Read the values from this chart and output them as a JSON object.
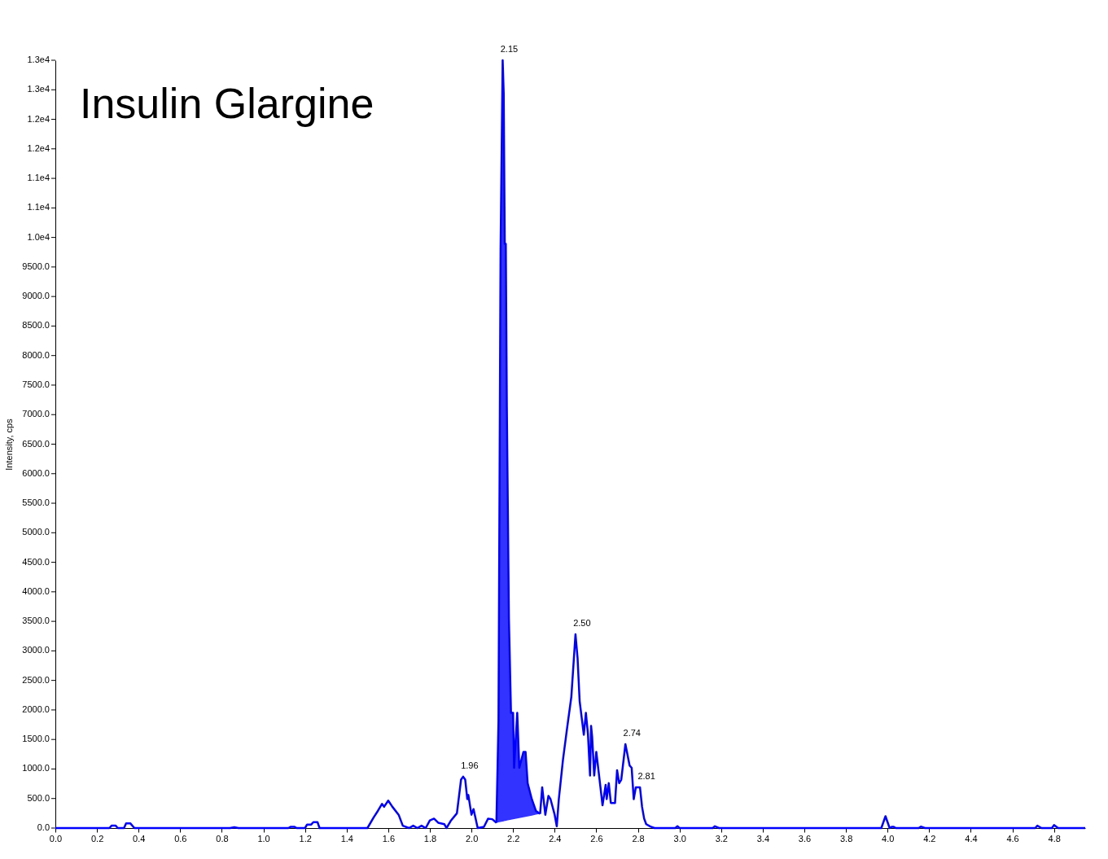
{
  "chart_data": {
    "type": "line",
    "title": "Insulin Glargine",
    "ylabel": "Intensity, cps",
    "xlim": [
      0,
      4.95
    ],
    "ylim": [
      0,
      13000
    ],
    "xticks": [
      {
        "value": 0,
        "label": "0.0"
      },
      0.2,
      0.4,
      0.6,
      0.8,
      {
        "value": 1,
        "label": "1.0"
      },
      1.2,
      1.4,
      1.6,
      1.8,
      {
        "value": 2,
        "label": "2.0"
      },
      2.2,
      2.4,
      2.6,
      2.8,
      {
        "value": 3,
        "label": "3.0"
      },
      3.2,
      3.4,
      3.6,
      3.8,
      {
        "value": 4,
        "label": "4.0"
      },
      4.2,
      4.4,
      4.6,
      4.8
    ],
    "yticks": [
      {
        "value": 0,
        "label": "0.0"
      },
      {
        "value": 500,
        "label": "500.0"
      },
      {
        "value": 1000,
        "label": "1000.0"
      },
      {
        "value": 1500,
        "label": "1500.0"
      },
      {
        "value": 2000,
        "label": "2000.0"
      },
      {
        "value": 2500,
        "label": "2500.0"
      },
      {
        "value": 3000,
        "label": "3000.0"
      },
      {
        "value": 3500,
        "label": "3500.0"
      },
      {
        "value": 4000,
        "label": "4000.0"
      },
      {
        "value": 4500,
        "label": "4500.0"
      },
      {
        "value": 5000,
        "label": "5000.0"
      },
      {
        "value": 5500,
        "label": "5500.0"
      },
      {
        "value": 6000,
        "label": "6000.0"
      },
      {
        "value": 6500,
        "label": "6500.0"
      },
      {
        "value": 7000,
        "label": "7000.0"
      },
      {
        "value": 7500,
        "label": "7500.0"
      },
      {
        "value": 8000,
        "label": "8000.0"
      },
      {
        "value": 8500,
        "label": "8500.0"
      },
      {
        "value": 9000,
        "label": "9000.0"
      },
      {
        "value": 9500,
        "label": "9500.0"
      },
      {
        "value": 10000,
        "label": "1.0e4"
      },
      {
        "value": 10500,
        "label": "1.1e4"
      },
      {
        "value": 11000,
        "label": "1.1e4"
      },
      {
        "value": 11500,
        "label": "1.2e4"
      },
      {
        "value": 12000,
        "label": "1.2e4"
      },
      {
        "value": 12500,
        "label": "1.3e4"
      },
      {
        "value": 13000,
        "label": "1.3e4"
      }
    ],
    "grid": false,
    "marker": "none",
    "line_style": "solid",
    "series": [
      {
        "color": "#0000ff",
        "x": [
          0,
          0.26,
          0.27,
          0.29,
          0.3,
          0.33,
          0.34,
          0.36,
          0.38,
          0.84,
          0.86,
          0.88,
          1.12,
          1.13,
          1.15,
          1.16,
          1.2,
          1.21,
          1.23,
          1.24,
          1.26,
          1.27,
          1.5,
          1.53,
          1.55,
          1.57,
          1.58,
          1.6,
          1.62,
          1.65,
          1.67,
          1.7,
          1.72,
          1.74,
          1.76,
          1.78,
          1.8,
          1.82,
          1.84,
          1.87,
          1.88,
          1.9,
          1.93,
          1.95,
          1.96,
          1.97,
          1.98,
          1.985,
          2.0,
          2.01,
          2.03,
          2.06,
          2.08,
          2.1,
          2.12
        ],
        "values": [
          0,
          0,
          40,
          40,
          0,
          0,
          80,
          80,
          0,
          0,
          15,
          0,
          0,
          20,
          20,
          0,
          0,
          60,
          60,
          100,
          100,
          0,
          0,
          180,
          290,
          410,
          360,
          465,
          360,
          225,
          40,
          0,
          40,
          0,
          40,
          0,
          130,
          160,
          90,
          65,
          0,
          120,
          250,
          820,
          870,
          820,
          490,
          560,
          225,
          320,
          0,
          20,
          160,
          150,
          90
        ]
      },
      {
        "color": "#0000ff",
        "type": "line",
        "x": [
          2.12,
          2.13,
          2.14,
          2.15,
          2.155,
          2.16,
          2.165,
          2.17,
          2.18,
          2.19,
          2.2,
          2.205,
          2.22,
          2.23,
          2.25,
          2.26,
          2.27,
          2.29,
          2.31,
          2.33
        ],
        "values": [
          90,
          1800,
          9800,
          13000,
          12440,
          9890,
          9890,
          7130,
          3550,
          1950,
          1950,
          1020,
          1950,
          1020,
          1290,
          1290,
          760,
          490,
          290,
          240
        ],
        "lower": [
          90,
          97,
          104,
          111,
          115,
          119,
          122,
          126,
          133,
          140,
          147,
          151,
          161,
          169,
          183,
          190,
          197,
          211,
          226,
          240
        ],
        "upper": [
          90,
          1800,
          9800,
          13000,
          12440,
          9890,
          9890,
          7130,
          3550,
          1950,
          1950,
          1020,
          1950,
          1020,
          1290,
          1290,
          760,
          490,
          290,
          240
        ]
      },
      {
        "color": "#0000ff",
        "x": [
          2.33,
          2.34,
          2.355,
          2.37,
          2.38,
          2.4,
          2.41,
          2.42,
          2.44,
          2.46,
          2.48,
          2.5,
          2.51,
          2.52,
          2.54,
          2.55,
          2.56,
          2.57,
          2.575,
          2.58,
          2.59,
          2.6,
          2.62,
          2.63,
          2.645,
          2.65,
          2.66,
          2.67,
          2.69,
          2.7,
          2.71,
          2.72,
          2.74,
          2.76,
          2.77,
          2.78,
          2.79,
          2.81,
          2.82,
          2.83,
          2.84,
          2.86,
          2.88,
          2.98,
          2.99,
          3.0,
          3.16,
          3.17,
          3.19,
          3.97,
          3.99,
          4.01,
          4.02,
          4.03,
          4.04,
          4.15,
          4.16,
          4.18,
          4.71,
          4.72,
          4.74,
          4.79,
          4.8,
          4.82,
          4.95
        ],
        "values": [
          240,
          690,
          225,
          545,
          490,
          225,
          30,
          490,
          1160,
          1700,
          2220,
          3280,
          2880,
          2150,
          1580,
          1950,
          1590,
          890,
          1730,
          1550,
          890,
          1290,
          690,
          385,
          730,
          490,
          760,
          425,
          425,
          980,
          760,
          820,
          1420,
          1060,
          1020,
          490,
          690,
          690,
          360,
          160,
          65,
          25,
          0,
          0,
          30,
          0,
          0,
          30,
          0,
          0,
          200,
          0,
          20,
          20,
          0,
          0,
          25,
          0,
          0,
          40,
          0,
          0,
          50,
          0,
          0
        ]
      }
    ],
    "annotations": [
      {
        "text": "2.15",
        "x": 2.15,
        "y": 13000
      },
      {
        "text": "1.96",
        "x": 1.96,
        "y": 870
      },
      {
        "text": "2.50",
        "x": 2.5,
        "y": 3280
      },
      {
        "text": "2.74",
        "x": 2.74,
        "y": 1420
      },
      {
        "text": "2.81",
        "x": 2.81,
        "y": 690
      }
    ]
  }
}
